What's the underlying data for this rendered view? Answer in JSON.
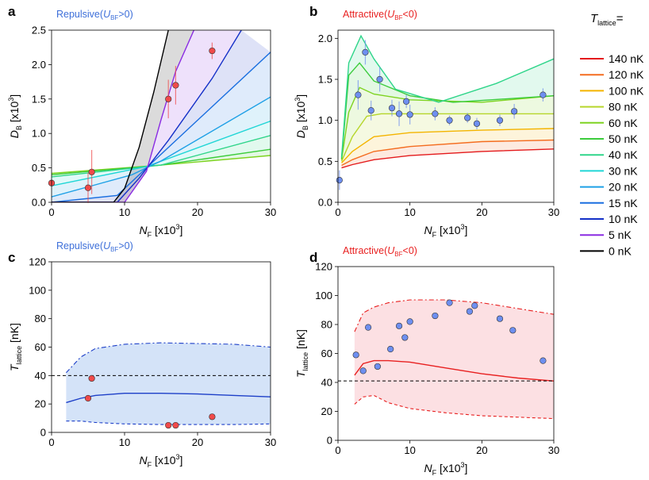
{
  "legend": {
    "title_main": "T",
    "title_sub": "lattice",
    "title_suffix": "=",
    "entries": [
      {
        "label": "140 nK",
        "color": "#e41a1c"
      },
      {
        "label": "120 nK",
        "color": "#f46d20"
      },
      {
        "label": "100 nK",
        "color": "#f4b400"
      },
      {
        "label": "80 nK",
        "color": "#b6d62a"
      },
      {
        "label": "60 nK",
        "color": "#7ed321"
      },
      {
        "label": "50 nK",
        "color": "#3ccc3c"
      },
      {
        "label": "40 nK",
        "color": "#2fd58a"
      },
      {
        "label": "30 nK",
        "color": "#20d6d6"
      },
      {
        "label": "20 nK",
        "color": "#1ea0e6"
      },
      {
        "label": "15 nK",
        "color": "#1a6fe0"
      },
      {
        "label": "10 nK",
        "color": "#1430c8"
      },
      {
        "label": "5 nK",
        "color": "#8a2be2"
      },
      {
        "label": "0 nK",
        "color": "#000000"
      }
    ]
  },
  "chart_data": [
    {
      "panel": "a",
      "type": "line",
      "title": "Repulsive(U_BF>0)",
      "title_parts": {
        "pre": "Repulsive(",
        "u": "U",
        "sub": "BF",
        "post": ">0)"
      },
      "title_color": "#3d6fd9",
      "xlabel": {
        "main": "N",
        "sub": "F",
        "unit": " [x10",
        "exp": "3",
        "close": "]"
      },
      "ylabel": {
        "main": "D",
        "sub": "B",
        "unit": " [x10",
        "exp": "3",
        "close": "]"
      },
      "xlim": [
        0,
        30
      ],
      "ylim": [
        0,
        2.5
      ],
      "xticks": [
        "0",
        "10",
        "20",
        "30"
      ],
      "xtick_values": [
        0,
        10,
        20,
        30
      ],
      "yticks": [
        "0.0",
        "0.5",
        "1.0",
        "1.5",
        "2.0",
        "2.5"
      ],
      "ytick_values": [
        0,
        0.5,
        1.0,
        1.5,
        2.0,
        2.5
      ],
      "series": [
        {
          "name": "60 nK",
          "color": "#7ed321",
          "x": [
            0,
            15,
            30
          ],
          "y": [
            0.42,
            0.54,
            0.68
          ]
        },
        {
          "name": "50 nK",
          "color": "#3ccc3c",
          "x": [
            0,
            15,
            30
          ],
          "y": [
            0.4,
            0.54,
            0.77
          ]
        },
        {
          "name": "40 nK",
          "color": "#2fd58a",
          "x": [
            0,
            15,
            30
          ],
          "y": [
            0.37,
            0.54,
            0.97
          ]
        },
        {
          "name": "30 nK",
          "color": "#20d6d6",
          "x": [
            0,
            13,
            30
          ],
          "y": [
            0.24,
            0.52,
            1.18
          ]
        },
        {
          "name": "20 nK",
          "color": "#1ea0e6",
          "x": [
            0,
            11,
            15,
            30
          ],
          "y": [
            0.08,
            0.4,
            0.6,
            1.53
          ]
        },
        {
          "name": "15 nK",
          "color": "#1a6fe0",
          "x": [
            0,
            9,
            13,
            30
          ],
          "y": [
            0.0,
            0.1,
            0.5,
            2.18
          ]
        },
        {
          "name": "10 nK",
          "color": "#1430c8",
          "x": [
            0,
            9,
            12,
            16,
            22,
            26
          ],
          "y": [
            0.0,
            0.0,
            0.35,
            0.9,
            1.8,
            2.5
          ]
        },
        {
          "name": "5 nK",
          "color": "#8a2be2",
          "x": [
            0,
            10,
            13,
            15,
            17,
            19.5
          ],
          "y": [
            0.0,
            0.0,
            0.45,
            1.2,
            1.9,
            2.5
          ]
        },
        {
          "name": "0 nK",
          "color": "#000000",
          "x": [
            0,
            8.5,
            10,
            12,
            14,
            16
          ],
          "y": [
            0.0,
            0.0,
            0.2,
            0.8,
            1.6,
            2.5
          ]
        }
      ],
      "points": {
        "color": "#f04a4a",
        "x": [
          0,
          5,
          5.5,
          16,
          17,
          22
        ],
        "y": [
          0.28,
          0.21,
          0.44,
          1.5,
          1.7,
          2.2
        ],
        "err": [
          0.0,
          0.22,
          0.32,
          0.28,
          0.28,
          0.12
        ]
      }
    },
    {
      "panel": "b",
      "type": "line",
      "title": "Attractive(U_BF<0)",
      "title_parts": {
        "pre": "Attractive(",
        "u": "U",
        "sub": "BF",
        "post": "<0)"
      },
      "title_color": "#e82020",
      "xlabel": {
        "main": "N",
        "sub": "F",
        "unit": " [x10",
        "exp": "3",
        "close": "]"
      },
      "ylabel": {
        "main": "D",
        "sub": "B",
        "unit": " [x10",
        "exp": "3",
        "close": "]"
      },
      "xlim": [
        0,
        30
      ],
      "ylim": [
        0,
        2.1
      ],
      "xticks": [
        "0",
        "10",
        "20",
        "30"
      ],
      "xtick_values": [
        0,
        10,
        20,
        30
      ],
      "yticks": [
        "0.0",
        "0.5",
        "1.0",
        "1.5",
        "2.0"
      ],
      "ytick_values": [
        0,
        0.5,
        1.0,
        1.5,
        2.0
      ],
      "series": [
        {
          "name": "140 nK",
          "color": "#e41a1c",
          "x": [
            0.5,
            2,
            5,
            10,
            20,
            30
          ],
          "y": [
            0.42,
            0.46,
            0.52,
            0.57,
            0.62,
            0.65
          ]
        },
        {
          "name": "120 nK",
          "color": "#f46d20",
          "x": [
            0.5,
            2,
            5,
            10,
            20,
            30
          ],
          "y": [
            0.45,
            0.52,
            0.62,
            0.68,
            0.74,
            0.76
          ]
        },
        {
          "name": "100 nK",
          "color": "#f4b400",
          "x": [
            0.5,
            2,
            5,
            10,
            20,
            30
          ],
          "y": [
            0.48,
            0.62,
            0.8,
            0.85,
            0.88,
            0.9
          ]
        },
        {
          "name": "80 nK",
          "color": "#b6d62a",
          "x": [
            0.5,
            2,
            4,
            6,
            10,
            20,
            30
          ],
          "y": [
            0.5,
            0.8,
            1.05,
            1.08,
            1.08,
            1.08,
            1.08
          ]
        },
        {
          "name": "60 nK",
          "color": "#7ed321",
          "x": [
            0.5,
            1.5,
            3,
            5,
            10,
            20,
            30
          ],
          "y": [
            0.52,
            1.1,
            1.4,
            1.32,
            1.25,
            1.22,
            1.3
          ]
        },
        {
          "name": "50 nK",
          "color": "#3ccc3c",
          "x": [
            0.5,
            1.5,
            3,
            5,
            10,
            16,
            30
          ],
          "y": [
            0.53,
            1.55,
            1.7,
            1.48,
            1.3,
            1.22,
            1.3
          ]
        },
        {
          "name": "40 nK",
          "color": "#2fd58a",
          "x": [
            0.5,
            1.5,
            3.2,
            5,
            8,
            14,
            22,
            30
          ],
          "y": [
            0.55,
            1.7,
            2.03,
            1.75,
            1.38,
            1.22,
            1.45,
            1.75
          ]
        }
      ],
      "points": {
        "color": "#6e8ff0",
        "x": [
          0.2,
          2.8,
          3.8,
          4.6,
          5.8,
          7.5,
          8.5,
          9.5,
          10,
          13.5,
          15.5,
          18,
          19.3,
          22.5,
          24.5,
          28.5
        ],
        "y": [
          0.27,
          1.31,
          1.83,
          1.12,
          1.5,
          1.15,
          1.08,
          1.23,
          1.07,
          1.08,
          1.0,
          1.03,
          0.96,
          1.0,
          1.11,
          1.31
        ],
        "err": [
          0.12,
          0.18,
          0.15,
          0.12,
          0.15,
          0.1,
          0.15,
          0.08,
          0.12,
          0.08,
          0.06,
          0.06,
          0.07,
          0.07,
          0.09,
          0.08
        ]
      }
    },
    {
      "panel": "c",
      "type": "line",
      "title": "Repulsive(U_BF>0)",
      "title_parts": {
        "pre": "Repulsive(",
        "u": "U",
        "sub": "BF",
        "post": ">0)"
      },
      "title_color": "#3d6fd9",
      "xlabel": {
        "main": "N",
        "sub": "F",
        "unit": " [x10",
        "exp": "3",
        "close": "]"
      },
      "ylabel": {
        "main": "T",
        "sub": "lattice",
        "unit": " [nK]",
        "exp": "",
        "close": ""
      },
      "xlim": [
        0,
        30
      ],
      "ylim": [
        0,
        120
      ],
      "xticks": [
        "0",
        "10",
        "20",
        "30"
      ],
      "xtick_values": [
        0,
        10,
        20,
        30
      ],
      "yticks": [
        "0",
        "20",
        "40",
        "60",
        "80",
        "100",
        "120"
      ],
      "ytick_values": [
        0,
        20,
        40,
        60,
        80,
        100,
        120
      ],
      "reference_line": 40,
      "band": {
        "color": "#3d7fe0",
        "x": [
          2,
          4,
          6,
          10,
          15,
          20,
          25,
          30
        ],
        "upper": [
          42,
          53,
          59,
          62,
          63,
          62.5,
          62,
          60
        ],
        "lower": [
          8,
          8,
          7,
          6,
          5.5,
          5.5,
          5.5,
          6
        ]
      },
      "curve": {
        "color": "#1d3fc8",
        "x": [
          2,
          4,
          6,
          10,
          15,
          20,
          25,
          30
        ],
        "y": [
          21,
          24,
          26,
          27.5,
          27.5,
          27,
          26,
          25
        ]
      },
      "points": {
        "color": "#f04a4a",
        "x": [
          5,
          5.5,
          16,
          17,
          22
        ],
        "y": [
          24,
          38,
          5,
          5,
          11
        ]
      }
    },
    {
      "panel": "d",
      "type": "line",
      "title": "Attractive(U_BF<0)",
      "title_parts": {
        "pre": "Attractive(",
        "u": "U",
        "sub": "BF",
        "post": "<0)"
      },
      "title_color": "#e82020",
      "xlabel": {
        "main": "N",
        "sub": "F",
        "unit": " [x10",
        "exp": "3",
        "close": "]"
      },
      "ylabel": {
        "main": "T",
        "sub": "lattice",
        "unit": " [nK]",
        "exp": "",
        "close": ""
      },
      "xlim": [
        0,
        30
      ],
      "ylim": [
        0,
        120
      ],
      "xticks": [
        "0",
        "10",
        "20",
        "30"
      ],
      "xtick_values": [
        0,
        10,
        20,
        30
      ],
      "yticks": [
        "0",
        "20",
        "40",
        "60",
        "80",
        "100",
        "120"
      ],
      "ytick_values": [
        0,
        20,
        40,
        60,
        80,
        100,
        120
      ],
      "reference_line": 41,
      "band": {
        "color": "#f07080",
        "x": [
          2.3,
          3.5,
          5,
          7,
          10,
          15,
          20,
          25,
          30
        ],
        "upper": [
          75,
          88,
          92,
          95,
          97,
          97,
          95,
          91,
          87
        ],
        "lower": [
          25,
          30,
          31,
          26,
          22,
          19,
          17,
          16,
          15
        ]
      },
      "curve": {
        "color": "#e82020",
        "x": [
          2.3,
          3.5,
          5,
          7,
          10,
          15,
          20,
          25,
          30
        ],
        "y": [
          45,
          53,
          55,
          55,
          54,
          50,
          46,
          43,
          41
        ]
      },
      "points": {
        "color": "#6e8ff0",
        "x": [
          2.5,
          3.5,
          4.2,
          5.5,
          7.3,
          8.5,
          9.3,
          10,
          13.5,
          15.5,
          18.3,
          19,
          22.5,
          24.3,
          28.5
        ],
        "y": [
          59,
          48,
          78,
          51,
          63,
          79,
          71,
          82,
          86,
          95,
          89,
          93,
          84,
          76,
          55
        ]
      }
    }
  ],
  "panel_labels": [
    "a",
    "b",
    "c",
    "d"
  ]
}
